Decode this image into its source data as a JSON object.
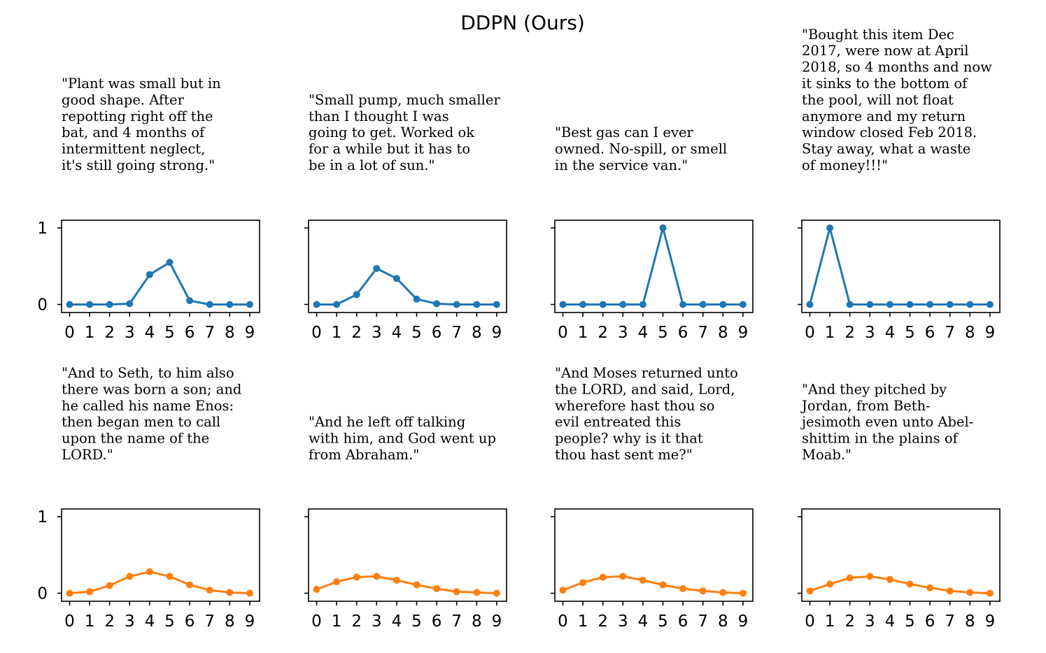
{
  "title": "DDPN (Ours)",
  "colors": {
    "top": "#1f77b4",
    "bottom": "#ff7f0e"
  },
  "chart_data": [
    {
      "type": "line",
      "row": 0,
      "col": 0,
      "color": "top",
      "text": [
        "\"Plant was small but in",
        "good shape. After",
        "repotting right off the",
        "bat, and 4 months of",
        "intermittent neglect,",
        "it's still going strong.\""
      ],
      "x": [
        0,
        1,
        2,
        3,
        4,
        5,
        6,
        7,
        8,
        9
      ],
      "values": [
        0,
        0,
        0,
        0.01,
        0.39,
        0.55,
        0.05,
        0,
        0,
        0
      ],
      "ylim": [
        0,
        1
      ],
      "yticks": [
        "0",
        "1"
      ]
    },
    {
      "type": "line",
      "row": 0,
      "col": 1,
      "color": "top",
      "text": [
        "\"Small pump, much smaller",
        "than I thought I was",
        "going to get.  Worked ok",
        "for a while but it has to",
        "be in a lot of sun.\""
      ],
      "x": [
        0,
        1,
        2,
        3,
        4,
        5,
        6,
        7,
        8,
        9
      ],
      "values": [
        0,
        0,
        0.13,
        0.47,
        0.34,
        0.07,
        0.01,
        0,
        0,
        0
      ],
      "ylim": [
        0,
        1
      ],
      "yticks": [
        "",
        ""
      ]
    },
    {
      "type": "line",
      "row": 0,
      "col": 2,
      "color": "top",
      "text": [
        "\"Best gas can I ever",
        "owned. No-spill, or smell",
        "in the service van.\""
      ],
      "x": [
        0,
        1,
        2,
        3,
        4,
        5,
        6,
        7,
        8,
        9
      ],
      "values": [
        0,
        0,
        0,
        0,
        0,
        1,
        0,
        0,
        0,
        0
      ],
      "ylim": [
        0,
        1
      ],
      "yticks": [
        "",
        ""
      ]
    },
    {
      "type": "line",
      "row": 0,
      "col": 3,
      "color": "top",
      "text": [
        "\"Bought this item Dec",
        "2017, were now at April",
        "2018, so 4 months and now",
        "it sinks to the bottom of",
        "the pool, will not float",
        "anymore and my return",
        "window closed Feb 2018.",
        "Stay away, what a waste",
        "of money!!!\""
      ],
      "x": [
        0,
        1,
        2,
        3,
        4,
        5,
        6,
        7,
        8,
        9
      ],
      "values": [
        0,
        1,
        0,
        0,
        0,
        0,
        0,
        0,
        0,
        0
      ],
      "ylim": [
        0,
        1
      ],
      "yticks": [
        "",
        ""
      ]
    },
    {
      "type": "line",
      "row": 1,
      "col": 0,
      "color": "bottom",
      "text": [
        "\"And to Seth, to him also",
        "there was born a son; and",
        "he called his name Enos:",
        "then began men to call",
        "upon the name of the",
        "LORD.\""
      ],
      "x": [
        0,
        1,
        2,
        3,
        4,
        5,
        6,
        7,
        8,
        9
      ],
      "values": [
        0,
        0.02,
        0.1,
        0.22,
        0.28,
        0.22,
        0.11,
        0.04,
        0.01,
        0
      ],
      "ylim": [
        0,
        1
      ],
      "yticks": [
        "0",
        "1"
      ]
    },
    {
      "type": "line",
      "row": 1,
      "col": 1,
      "color": "bottom",
      "text": [
        "\"And he left off talking",
        "with him, and God went up",
        "from Abraham.\""
      ],
      "x": [
        0,
        1,
        2,
        3,
        4,
        5,
        6,
        7,
        8,
        9
      ],
      "values": [
        0.05,
        0.15,
        0.21,
        0.22,
        0.17,
        0.11,
        0.06,
        0.02,
        0.01,
        0
      ],
      "ylim": [
        0,
        1
      ],
      "yticks": [
        "",
        ""
      ]
    },
    {
      "type": "line",
      "row": 1,
      "col": 2,
      "color": "bottom",
      "text": [
        "\"And Moses returned unto",
        "the LORD, and said, Lord,",
        "wherefore hast thou so",
        "evil entreated this",
        "people? why is it that",
        "thou hast sent me?\""
      ],
      "x": [
        0,
        1,
        2,
        3,
        4,
        5,
        6,
        7,
        8,
        9
      ],
      "values": [
        0.04,
        0.14,
        0.21,
        0.22,
        0.17,
        0.11,
        0.06,
        0.03,
        0.01,
        0
      ],
      "ylim": [
        0,
        1
      ],
      "yticks": [
        "",
        ""
      ]
    },
    {
      "type": "line",
      "row": 1,
      "col": 3,
      "color": "bottom",
      "text": [
        "\"And they pitched by",
        "Jordan, from Beth-",
        "jesimoth even unto Abel-",
        "shittim in the plains of",
        "Moab.\""
      ],
      "x": [
        0,
        1,
        2,
        3,
        4,
        5,
        6,
        7,
        8,
        9
      ],
      "values": [
        0.03,
        0.12,
        0.2,
        0.22,
        0.18,
        0.12,
        0.07,
        0.03,
        0.01,
        0
      ],
      "ylim": [
        0,
        1
      ],
      "yticks": [
        "",
        ""
      ]
    }
  ]
}
